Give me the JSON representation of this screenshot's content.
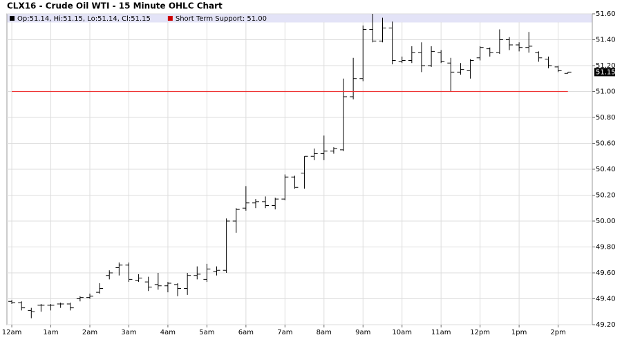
{
  "chart_data": {
    "type": "ohlc",
    "title": "CLX16 - Crude Oil WTI - 15 Minute OHLC Chart",
    "legend": [
      {
        "label": "Op:51.14, Hi:51.15, Lo:51.14, Cl:51.15",
        "color": "#000000"
      },
      {
        "label": "Short Term Support: 51.00",
        "color": "#cc0000"
      }
    ],
    "support": {
      "value": 51.0,
      "color": "#ee3333"
    },
    "last_price": 51.15,
    "color": "#000000",
    "grid": true,
    "xlim": [
      -0.125,
      14.875
    ],
    "ylim": [
      49.2,
      51.6
    ],
    "xticks": [
      {
        "value": 0,
        "label": "12am"
      },
      {
        "value": 1,
        "label": "1am"
      },
      {
        "value": 2,
        "label": "2am"
      },
      {
        "value": 3,
        "label": "3am"
      },
      {
        "value": 4,
        "label": "4am"
      },
      {
        "value": 5,
        "label": "5am"
      },
      {
        "value": 6,
        "label": "6am"
      },
      {
        "value": 7,
        "label": "7am"
      },
      {
        "value": 8,
        "label": "8am"
      },
      {
        "value": 9,
        "label": "9am"
      },
      {
        "value": 10,
        "label": "10am"
      },
      {
        "value": 11,
        "label": "11am"
      },
      {
        "value": 12,
        "label": "12pm"
      },
      {
        "value": 13,
        "label": "1pm"
      },
      {
        "value": 14,
        "label": "2pm"
      }
    ],
    "yticks": [
      {
        "value": 49.2,
        "label": "49.20"
      },
      {
        "value": 49.4,
        "label": "49.40"
      },
      {
        "value": 49.6,
        "label": "49.60"
      },
      {
        "value": 49.8,
        "label": "49.80"
      },
      {
        "value": 50.0,
        "label": "50.00"
      },
      {
        "value": 50.2,
        "label": "50.20"
      },
      {
        "value": 50.4,
        "label": "50.40"
      },
      {
        "value": 50.6,
        "label": "50.60"
      },
      {
        "value": 50.8,
        "label": "50.80"
      },
      {
        "value": 51.0,
        "label": "51.00"
      },
      {
        "value": 51.2,
        "label": "51.20"
      },
      {
        "value": 51.4,
        "label": "51.40"
      },
      {
        "value": 51.6,
        "label": "51.60"
      }
    ],
    "x": [
      0,
      0.25,
      0.5,
      0.75,
      1,
      1.25,
      1.5,
      1.75,
      2,
      2.25,
      2.5,
      2.75,
      3,
      3.25,
      3.5,
      3.75,
      4,
      4.25,
      4.5,
      4.75,
      5,
      5.25,
      5.5,
      5.75,
      6,
      6.25,
      6.5,
      6.75,
      7,
      7.25,
      7.5,
      7.75,
      8,
      8.25,
      8.5,
      8.75,
      9,
      9.25,
      9.5,
      9.75,
      10,
      10.25,
      10.5,
      10.75,
      11,
      11.25,
      11.5,
      11.75,
      12,
      12.25,
      12.5,
      12.75,
      13,
      13.25,
      13.5,
      13.75,
      14,
      14.25
    ],
    "open": [
      49.38,
      49.37,
      49.31,
      49.35,
      49.35,
      49.36,
      49.36,
      49.4,
      49.41,
      49.45,
      49.58,
      49.64,
      49.66,
      49.54,
      49.53,
      49.51,
      49.5,
      49.51,
      49.48,
      49.58,
      49.55,
      49.61,
      49.62,
      50.0,
      50.1,
      50.14,
      50.15,
      50.12,
      50.17,
      50.34,
      50.37,
      50.5,
      50.52,
      50.54,
      50.55,
      50.96,
      51.1,
      51.48,
      51.39,
      51.49,
      51.23,
      51.24,
      51.3,
      51.2,
      51.3,
      51.22,
      51.15,
      51.16,
      51.26,
      51.33,
      51.3,
      51.4,
      51.36,
      51.34,
      51.3,
      51.25,
      51.19,
      51.14
    ],
    "high": [
      49.39,
      49.38,
      49.33,
      49.36,
      49.36,
      49.37,
      49.37,
      49.42,
      49.44,
      49.52,
      49.62,
      49.68,
      49.68,
      49.59,
      49.57,
      49.6,
      49.53,
      49.52,
      49.6,
      49.65,
      49.67,
      49.65,
      50.02,
      50.1,
      50.27,
      50.17,
      50.19,
      50.18,
      50.36,
      50.35,
      50.5,
      50.56,
      50.66,
      50.57,
      51.1,
      51.26,
      51.51,
      51.6,
      51.57,
      51.54,
      51.27,
      51.35,
      51.38,
      51.35,
      51.32,
      51.26,
      51.22,
      51.25,
      51.35,
      51.34,
      51.48,
      51.42,
      51.38,
      51.46,
      51.31,
      51.27,
      51.2,
      51.15
    ],
    "low": [
      49.36,
      49.31,
      49.25,
      49.3,
      49.31,
      49.33,
      49.31,
      49.38,
      49.4,
      49.44,
      49.55,
      49.58,
      49.53,
      49.53,
      49.46,
      49.47,
      49.45,
      49.42,
      49.43,
      49.55,
      49.53,
      49.58,
      49.6,
      49.91,
      50.08,
      50.1,
      50.1,
      50.09,
      50.16,
      50.25,
      50.25,
      50.47,
      50.47,
      50.52,
      50.54,
      50.94,
      51.08,
      51.38,
      51.38,
      51.21,
      51.22,
      51.22,
      51.15,
      51.19,
      51.22,
      51.0,
      51.13,
      51.1,
      51.24,
      51.27,
      51.29,
      51.32,
      51.31,
      51.3,
      51.23,
      51.18,
      51.15,
      51.14
    ],
    "close": [
      49.37,
      49.33,
      49.3,
      49.35,
      49.35,
      49.36,
      49.33,
      49.41,
      49.42,
      49.48,
      49.6,
      49.66,
      49.55,
      49.56,
      49.49,
      49.5,
      49.52,
      49.48,
      49.58,
      49.59,
      49.63,
      49.62,
      50.0,
      50.09,
      50.14,
      50.15,
      50.12,
      50.17,
      50.34,
      50.26,
      50.5,
      50.52,
      50.54,
      50.56,
      50.96,
      51.1,
      51.48,
      51.39,
      51.49,
      51.24,
      51.24,
      51.3,
      51.2,
      51.31,
      51.23,
      51.15,
      51.17,
      51.24,
      51.34,
      51.3,
      51.4,
      51.36,
      51.34,
      51.35,
      51.26,
      51.2,
      51.16,
      51.15
    ]
  }
}
